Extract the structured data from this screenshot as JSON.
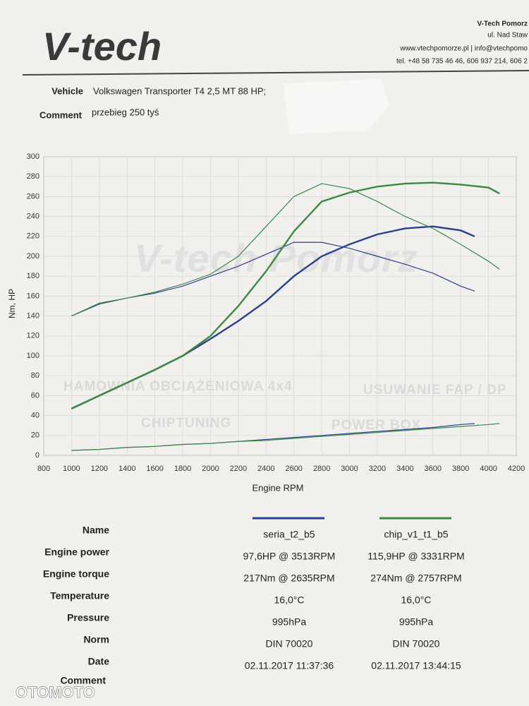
{
  "header": {
    "logo": "V-tech",
    "company": "V-Tech Pomorz",
    "street": "ul. Nad Staw",
    "web": "www.vtechpomorze.pl | info@vtechpomo",
    "phone": "tel. +48 58 735 46 46, 606 937 214, 606 2"
  },
  "vehicle": {
    "label": "Vehicle",
    "value": "Volkswagen Transporter T4 2,5 MT 88 HP;"
  },
  "comment": {
    "label": "Comment",
    "value": "przebieg 250 tyś"
  },
  "watermarks": [
    "HAMOWNIA OBCIĄŻENIOWA 4x4",
    "USUWANIE FAP / DP",
    "CHIPTUNING",
    "POWER BOX",
    "V-tech Pomorz"
  ],
  "chart_data": {
    "type": "line",
    "xlabel": "Engine RPM",
    "ylabel": "Nm, HP",
    "xlim": [
      800,
      4200
    ],
    "xticks": [
      800,
      1000,
      1200,
      1400,
      1600,
      1800,
      2000,
      2200,
      2400,
      2600,
      2800,
      3000,
      3200,
      3400,
      3600,
      3800,
      4000,
      4200
    ],
    "ylim": [
      0,
      300
    ],
    "yticks": [
      0,
      20,
      40,
      60,
      80,
      100,
      120,
      140,
      160,
      180,
      200,
      220,
      240,
      260,
      280,
      300
    ],
    "grid": true,
    "series": [
      {
        "name": "seria_t2_b5",
        "color": "#2b3f8f",
        "x": [
          1000,
          1200,
          1400,
          1600,
          1800,
          2000,
          2200,
          2400,
          2600,
          2800,
          3000,
          3200,
          3400,
          3600,
          3800,
          3900
        ],
        "torque": [
          140,
          152,
          158,
          163,
          170,
          180,
          190,
          202,
          214,
          214,
          208,
          200,
          192,
          183,
          170,
          165
        ],
        "power": [
          47,
          60,
          73,
          86,
          100,
          117,
          135,
          155,
          180,
          200,
          212,
          222,
          228,
          230,
          226,
          220
        ],
        "loss": [
          5,
          6,
          8,
          9,
          11,
          12,
          14,
          16,
          18,
          20,
          22,
          24,
          26,
          28,
          31,
          32
        ]
      },
      {
        "name": "chip_v1_t1_b5",
        "color": "#3a8a45",
        "x": [
          1000,
          1200,
          1400,
          1600,
          1800,
          2000,
          2200,
          2400,
          2600,
          2800,
          3000,
          3200,
          3400,
          3600,
          3800,
          4000,
          4080
        ],
        "torque": [
          140,
          153,
          158,
          164,
          172,
          182,
          200,
          230,
          260,
          273,
          268,
          255,
          240,
          228,
          212,
          195,
          187
        ],
        "power": [
          47,
          60,
          73,
          86,
          100,
          120,
          150,
          185,
          225,
          255,
          264,
          270,
          273,
          274,
          272,
          269,
          263
        ],
        "loss": [
          5,
          6,
          8,
          9,
          11,
          12,
          14,
          15,
          17,
          19,
          21,
          23,
          25,
          27,
          29,
          31,
          32
        ]
      }
    ]
  },
  "results": {
    "name_label": "Name",
    "rows": [
      {
        "label": "Engine power",
        "values": [
          "97,6HP @  3513RPM",
          "115,9HP @  3331RPM"
        ]
      },
      {
        "label": "Engine torque",
        "values": [
          "217Nm @ 2635RPM",
          "274Nm @ 2757RPM"
        ]
      },
      {
        "label": "Temperature",
        "values": [
          "16,0°C",
          "16,0°C"
        ]
      },
      {
        "label": "Pressure",
        "values": [
          "995hPa",
          "995hPa"
        ]
      },
      {
        "label": "Norm",
        "values": [
          "DIN 70020",
          "DIN 70020"
        ]
      },
      {
        "label": "Date",
        "values": [
          "02.11.2017 11:37:36",
          "02.11.2017 13:44:15"
        ]
      }
    ],
    "comment_label": "Comment"
  },
  "footer": "OTOMOTO"
}
